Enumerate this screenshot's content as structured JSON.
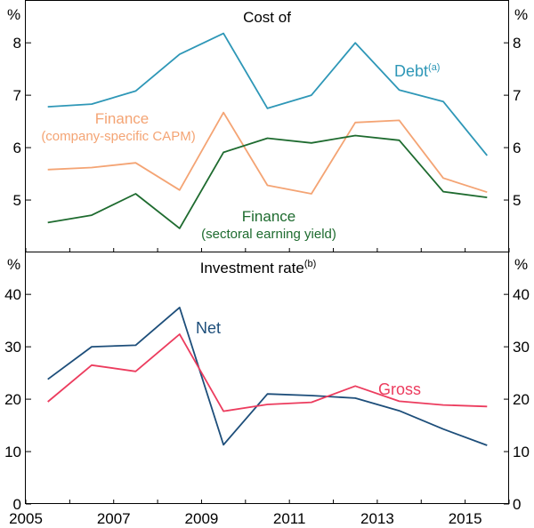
{
  "chart_data": [
    {
      "type": "line",
      "title": "Cost of",
      "ylabel_left": "%",
      "ylabel_right": "%",
      "ylim": [
        4.0,
        8.8
      ],
      "yticks": [
        "5",
        "6",
        "7",
        "8"
      ],
      "x": [
        2005.5,
        2006.5,
        2007.5,
        2008.5,
        2009.5,
        2010.5,
        2011.5,
        2012.5,
        2013.5,
        2014.5,
        2015.5
      ],
      "series": [
        {
          "name": "Debt",
          "label": "Debt",
          "sup": "(a)",
          "color": "#2E97B7",
          "values": [
            6.78,
            6.83,
            7.08,
            7.78,
            8.18,
            6.75,
            7.0,
            8.0,
            7.1,
            6.88,
            5.85
          ]
        },
        {
          "name": "Finance (company-specific CAPM)",
          "label_line1": "Finance",
          "label_line2": "(company-specific CAPM)",
          "color": "#F4A474",
          "values": [
            5.58,
            5.62,
            5.71,
            5.19,
            6.67,
            5.28,
            5.12,
            6.48,
            6.52,
            5.42,
            5.15
          ]
        },
        {
          "name": "Finance (sectoral earning yield)",
          "label_line1": "Finance",
          "label_line2": "(sectoral earning yield)",
          "color": "#1E6B2F",
          "values": [
            4.57,
            4.71,
            5.12,
            4.46,
            5.91,
            6.18,
            6.09,
            6.23,
            6.14,
            5.16,
            5.05
          ]
        }
      ]
    },
    {
      "type": "line",
      "title": "Investment rate",
      "title_sup": "(b)",
      "ylabel_left": "%",
      "ylabel_right": "%",
      "ylim": [
        0,
        48
      ],
      "yticks": [
        "0",
        "10",
        "20",
        "30",
        "40"
      ],
      "x": [
        2005.5,
        2006.5,
        2007.5,
        2008.5,
        2009.5,
        2010.5,
        2011.5,
        2012.5,
        2013.5,
        2014.5,
        2015.5
      ],
      "xticks": [
        "2005",
        "2007",
        "2009",
        "2011",
        "2013",
        "2015"
      ],
      "xrange": [
        2005,
        2016
      ],
      "series": [
        {
          "name": "Net",
          "label": "Net",
          "color": "#1D4E7A",
          "values": [
            23.8,
            30.0,
            30.3,
            37.5,
            11.3,
            21.0,
            20.7,
            20.2,
            17.8,
            14.3,
            11.2
          ]
        },
        {
          "name": "Gross",
          "label": "Gross",
          "color": "#EC3C5E",
          "values": [
            19.5,
            26.5,
            25.3,
            32.4,
            17.7,
            19.0,
            19.4,
            22.5,
            19.6,
            18.9,
            18.6
          ]
        }
      ]
    }
  ]
}
